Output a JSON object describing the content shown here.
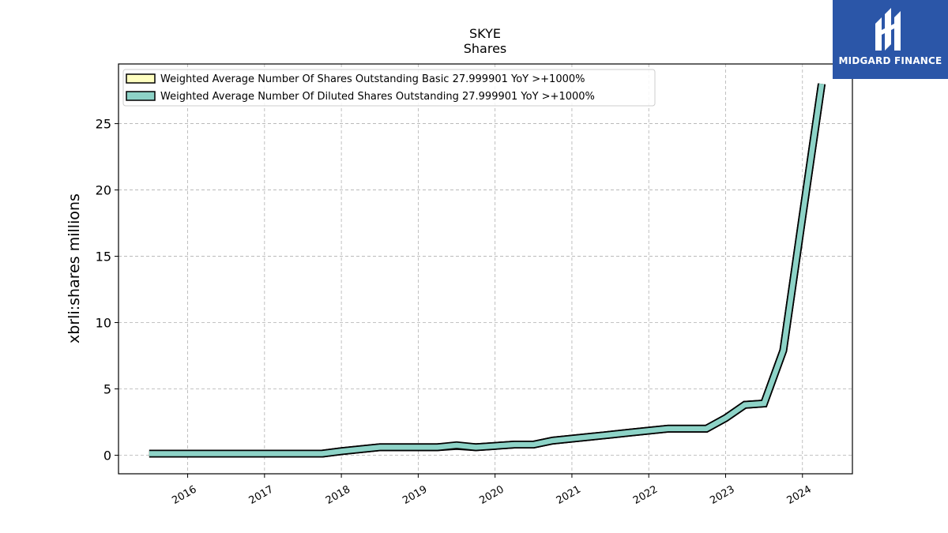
{
  "colors": {
    "series_basic": "#ffffc0",
    "series_diluted": "#8dd3c7",
    "outline": "#000000",
    "grid": "#b0b0b0",
    "logo_bg": "#2b56a8"
  },
  "logo": {
    "text": "MIDGARD FINANCE",
    "icon": "midgard-logo-icon"
  },
  "chart_data": {
    "type": "line",
    "title": "SKYE",
    "subtitle": "Shares",
    "ylabel": "xbrli:shares millions",
    "xlabel": "",
    "ylim": [
      -1.4,
      29.5
    ],
    "xlim": [
      2015.1,
      2024.65
    ],
    "yticks": [
      0,
      5,
      10,
      15,
      20,
      25
    ],
    "xticks": [
      2016,
      2017,
      2018,
      2019,
      2020,
      2021,
      2022,
      2023,
      2024
    ],
    "grid": true,
    "legend_position": "top-left",
    "series": [
      {
        "name": "Weighted Average Number Of Shares Outstanding Basic  27.999901 YoY >+1000%",
        "x": [
          2015.5,
          2017.75,
          2018.0,
          2018.25,
          2018.5,
          2018.75,
          2019.0,
          2019.25,
          2019.5,
          2019.75,
          2020.0,
          2020.25,
          2020.5,
          2020.75,
          2021.0,
          2021.25,
          2021.5,
          2021.75,
          2022.0,
          2022.25,
          2022.5,
          2022.75,
          2023.0,
          2023.25,
          2023.5,
          2023.75,
          2024.0,
          2024.25
        ],
        "values": [
          0.12,
          0.12,
          0.3,
          0.45,
          0.6,
          0.6,
          0.6,
          0.6,
          0.7,
          0.6,
          0.7,
          0.8,
          0.8,
          1.1,
          1.25,
          1.4,
          1.55,
          1.7,
          1.85,
          2.0,
          2.0,
          2.0,
          2.8,
          3.8,
          3.9,
          7.9,
          18.0,
          28.0
        ]
      },
      {
        "name": "Weighted Average Number Of Diluted Shares Outstanding  27.999901 YoY >+1000%",
        "x": [
          2015.5,
          2017.75,
          2018.0,
          2018.25,
          2018.5,
          2018.75,
          2019.0,
          2019.25,
          2019.5,
          2019.75,
          2020.0,
          2020.25,
          2020.5,
          2020.75,
          2021.0,
          2021.25,
          2021.5,
          2021.75,
          2022.0,
          2022.25,
          2022.5,
          2022.75,
          2023.0,
          2023.25,
          2023.5,
          2023.75,
          2024.0,
          2024.25
        ],
        "values": [
          0.12,
          0.12,
          0.3,
          0.45,
          0.6,
          0.6,
          0.6,
          0.6,
          0.75,
          0.6,
          0.7,
          0.8,
          0.8,
          1.1,
          1.25,
          1.4,
          1.55,
          1.7,
          1.85,
          2.0,
          2.0,
          2.0,
          2.8,
          3.8,
          3.9,
          7.9,
          18.0,
          28.0
        ]
      }
    ]
  }
}
